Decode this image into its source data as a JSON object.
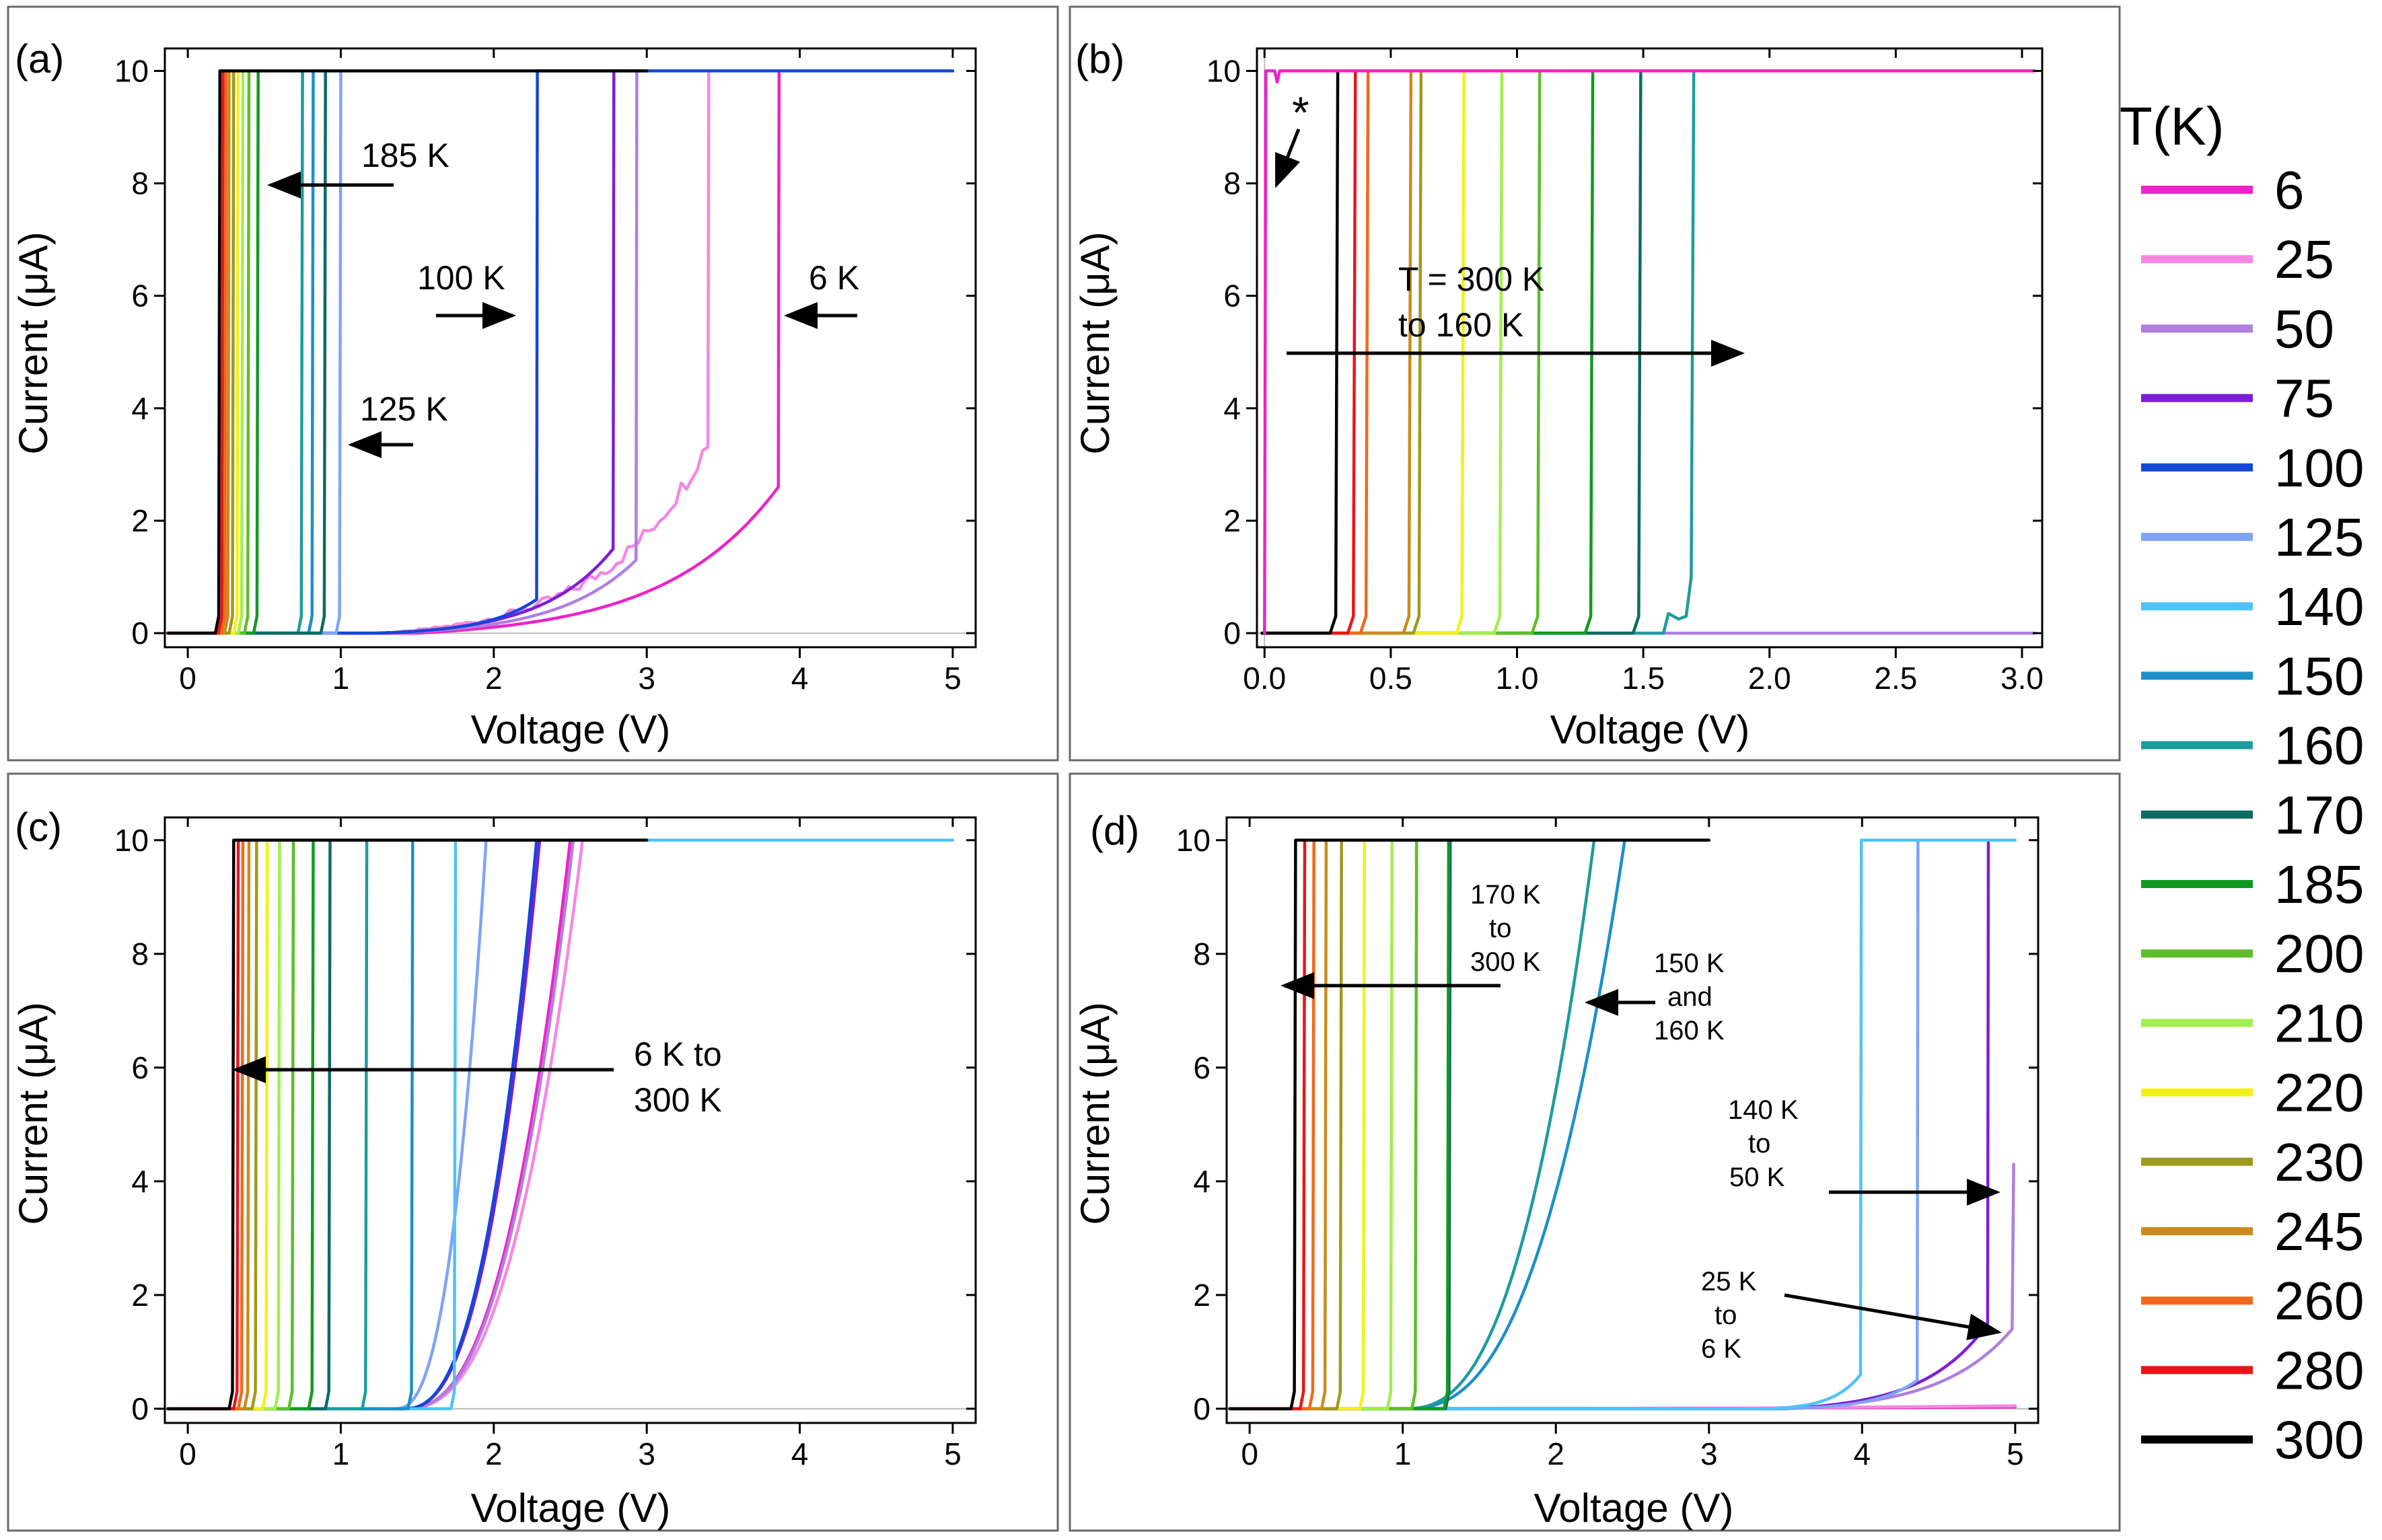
{
  "figure": {
    "legend": {
      "title": "T(K)",
      "entries": [
        {
          "label": "6",
          "color": "#EE22C8"
        },
        {
          "label": "25",
          "color": "#F587E3"
        },
        {
          "label": "50",
          "color": "#B07FE0"
        },
        {
          "label": "75",
          "color": "#7B1FD6"
        },
        {
          "label": "100",
          "color": "#1347D8"
        },
        {
          "label": "125",
          "color": "#7FA3F5"
        },
        {
          "label": "140",
          "color": "#4FC3F7"
        },
        {
          "label": "150",
          "color": "#1C8FC9"
        },
        {
          "label": "160",
          "color": "#1E9C9C"
        },
        {
          "label": "170",
          "color": "#0D6B63"
        },
        {
          "label": "185",
          "color": "#119A22"
        },
        {
          "label": "200",
          "color": "#5DBE2A"
        },
        {
          "label": "210",
          "color": "#A3EE4D"
        },
        {
          "label": "220",
          "color": "#F4F01A"
        },
        {
          "label": "230",
          "color": "#9E9A1E"
        },
        {
          "label": "245",
          "color": "#C98C1C"
        },
        {
          "label": "260",
          "color": "#F06A1C"
        },
        {
          "label": "280",
          "color": "#E8161B"
        },
        {
          "label": "300",
          "color": "#000000"
        }
      ]
    }
  },
  "chart_data": [
    {
      "panel": "(a)",
      "type": "line",
      "xlabel": "Voltage (V)",
      "ylabel": "Current (μA)",
      "xlim": [
        -0.15,
        5.15
      ],
      "ylim": [
        -0.25,
        10.4
      ],
      "xticks": [
        0,
        1,
        2,
        3,
        4,
        5
      ],
      "xtick_labels": [
        "0",
        "1",
        "2",
        "3",
        "4",
        "5"
      ],
      "yticks": [
        0,
        2,
        4,
        6,
        8,
        10
      ],
      "ytick_labels": [
        "0",
        "2",
        "4",
        "6",
        "8",
        "10"
      ],
      "series": [
        {
          "name": "6",
          "kind": "exp",
          "vstart": 1.5,
          "vjump": 3.86,
          "ijump": 2.6,
          "vend": 3.86
        },
        {
          "name": "25",
          "kind": "noisy",
          "vstart": 1.3,
          "vjump": 3.4,
          "ijump": 3.4,
          "vend": 3.4
        },
        {
          "name": "50",
          "kind": "exp",
          "vstart": 1.3,
          "vjump": 2.93,
          "ijump": 1.3,
          "vend": 2.93
        },
        {
          "name": "75",
          "kind": "exp",
          "vstart": 1.3,
          "vjump": 2.78,
          "ijump": 1.5,
          "vend": 2.78
        },
        {
          "name": "100",
          "kind": "exp",
          "vstart": 1.2,
          "vjump": 2.28,
          "ijump": 0.6,
          "vend": 5.0
        },
        {
          "name": "125",
          "kind": "step",
          "vjump": 1.0,
          "vend": 1.0
        },
        {
          "name": "150",
          "kind": "step",
          "vjump": 0.82,
          "vend": 0.82
        },
        {
          "name": "160",
          "kind": "step",
          "vjump": 0.75,
          "vend": 0.75
        },
        {
          "name": "170",
          "kind": "step",
          "vjump": 0.9,
          "vend": 0.9
        },
        {
          "name": "185",
          "kind": "step",
          "vjump": 0.46,
          "vend": 0.46
        },
        {
          "name": "200",
          "kind": "step",
          "vjump": 0.4,
          "vend": 0.4
        },
        {
          "name": "210",
          "kind": "step",
          "vjump": 0.36,
          "vend": 0.36
        },
        {
          "name": "220",
          "kind": "step",
          "vjump": 0.33,
          "vend": 0.33
        },
        {
          "name": "230",
          "kind": "step",
          "vjump": 0.3,
          "vend": 0.3
        },
        {
          "name": "245",
          "kind": "step",
          "vjump": 0.27,
          "vend": 0.27
        },
        {
          "name": "260",
          "kind": "step",
          "vjump": 0.25,
          "vend": 0.25
        },
        {
          "name": "280",
          "kind": "step",
          "vjump": 0.23,
          "vend": 0.23
        },
        {
          "name": "300",
          "kind": "step",
          "vjump": 0.21,
          "vend": 3.0
        }
      ]
    },
    {
      "panel": "(b)",
      "type": "line",
      "xlabel": "Voltage (V)",
      "ylabel": "Current (μA)",
      "xlim": [
        -0.03,
        3.08
      ],
      "ylim": [
        -0.25,
        10.4
      ],
      "xticks": [
        0,
        0.5,
        1.0,
        1.5,
        2.0,
        2.5,
        3.0
      ],
      "xtick_labels": [
        "0.0",
        "0.5",
        "1.0",
        "1.5",
        "2.0",
        "2.5",
        "3.0"
      ],
      "yticks": [
        0,
        2,
        4,
        6,
        8,
        10
      ],
      "ytick_labels": [
        "0",
        "2",
        "4",
        "6",
        "8",
        "10"
      ],
      "series": [
        {
          "name": "50",
          "kind": "flat",
          "vjump": 1.6,
          "vend": 3.05
        },
        {
          "name": "160",
          "kind": "bump",
          "vjump": 1.7,
          "vend": 1.7
        },
        {
          "name": "170",
          "kind": "step",
          "vjump": 1.49,
          "vend": 1.49
        },
        {
          "name": "185",
          "kind": "step",
          "vjump": 1.3,
          "vend": 1.3
        },
        {
          "name": "200",
          "kind": "step",
          "vjump": 1.09,
          "vend": 1.09
        },
        {
          "name": "210",
          "kind": "step",
          "vjump": 0.94,
          "vend": 0.94
        },
        {
          "name": "220",
          "kind": "step",
          "vjump": 0.79,
          "vend": 0.79
        },
        {
          "name": "230",
          "kind": "step",
          "vjump": 0.62,
          "vend": 0.62
        },
        {
          "name": "245",
          "kind": "step",
          "vjump": 0.58,
          "vend": 0.58
        },
        {
          "name": "260",
          "kind": "step",
          "vjump": 0.41,
          "vend": 0.41
        },
        {
          "name": "280",
          "kind": "step",
          "vjump": 0.36,
          "vend": 0.36
        },
        {
          "name": "300",
          "kind": "step",
          "vjump": 0.29,
          "vend": 0.29
        },
        {
          "name": "6",
          "kind": "instant",
          "vjump": 0.0,
          "vend": 3.05
        }
      ]
    },
    {
      "panel": "(c)",
      "type": "line",
      "xlabel": "Voltage (V)",
      "ylabel": "Current (μA)",
      "xlim": [
        -0.15,
        5.15
      ],
      "ylim": [
        -0.25,
        10.4
      ],
      "xticks": [
        0,
        1,
        2,
        3,
        4,
        5
      ],
      "xtick_labels": [
        "0",
        "1",
        "2",
        "3",
        "4",
        "5"
      ],
      "yticks": [
        0,
        2,
        4,
        6,
        8,
        10
      ],
      "ytick_labels": [
        "0",
        "2",
        "4",
        "6",
        "8",
        "10"
      ],
      "series": [
        {
          "name": "6",
          "kind": "power",
          "vstart": 1.4,
          "vjump": 2.5,
          "ijump": 10.0,
          "vend": 2.5
        },
        {
          "name": "25",
          "kind": "power",
          "vstart": 1.4,
          "vjump": 2.58,
          "ijump": 10.0,
          "vend": 2.58
        },
        {
          "name": "50",
          "kind": "power",
          "vstart": 1.4,
          "vjump": 2.52,
          "ijump": 10.0,
          "vend": 2.52
        },
        {
          "name": "75",
          "kind": "power",
          "vstart": 1.4,
          "vjump": 2.3,
          "ijump": 10.0,
          "vend": 2.3
        },
        {
          "name": "100",
          "kind": "power",
          "vstart": 1.4,
          "vjump": 2.28,
          "ijump": 10.0,
          "vend": 2.28
        },
        {
          "name": "125",
          "kind": "power",
          "vstart": 1.35,
          "vjump": 1.95,
          "ijump": 10.0,
          "vend": 1.95
        },
        {
          "name": "140",
          "kind": "step",
          "vjump": 1.75,
          "vend": 5.0
        },
        {
          "name": "150",
          "kind": "step",
          "vjump": 1.47,
          "vend": 1.47
        },
        {
          "name": "160",
          "kind": "step",
          "vjump": 1.17,
          "vend": 1.17
        },
        {
          "name": "170",
          "kind": "step",
          "vjump": 0.93,
          "vend": 0.93
        },
        {
          "name": "185",
          "kind": "step",
          "vjump": 0.82,
          "vend": 0.82
        },
        {
          "name": "200",
          "kind": "step",
          "vjump": 0.69,
          "vend": 0.69
        },
        {
          "name": "210",
          "kind": "step",
          "vjump": 0.6,
          "vend": 0.6
        },
        {
          "name": "220",
          "kind": "step",
          "vjump": 0.52,
          "vend": 0.52
        },
        {
          "name": "230",
          "kind": "step",
          "vjump": 0.45,
          "vend": 0.45
        },
        {
          "name": "245",
          "kind": "step",
          "vjump": 0.4,
          "vend": 0.4
        },
        {
          "name": "260",
          "kind": "step",
          "vjump": 0.36,
          "vend": 0.36
        },
        {
          "name": "280",
          "kind": "step",
          "vjump": 0.33,
          "vend": 0.33
        },
        {
          "name": "300",
          "kind": "step",
          "vjump": 0.3,
          "vend": 3.0
        }
      ]
    },
    {
      "panel": "(d)",
      "type": "line",
      "xlabel": "Voltage (V)",
      "ylabel": "Current (μA)",
      "xlim": [
        -0.15,
        5.15
      ],
      "ylim": [
        -0.25,
        10.4
      ],
      "xticks": [
        0,
        1,
        2,
        3,
        4,
        5
      ],
      "xtick_labels": [
        "0",
        "1",
        "2",
        "3",
        "4",
        "5"
      ],
      "yticks": [
        0,
        2,
        4,
        6,
        8,
        10
      ],
      "ytick_labels": [
        "0",
        "2",
        "4",
        "6",
        "8",
        "10"
      ],
      "series": [
        {
          "name": "6",
          "kind": "flat",
          "vjump": 0.0,
          "vend": 5.0
        },
        {
          "name": "25",
          "kind": "flat",
          "vjump": 0.0,
          "vend": 5.0
        },
        {
          "name": "50",
          "kind": "exp",
          "vstart": 3.5,
          "vjump": 4.98,
          "ijump": 1.4,
          "ipeak": 4.3,
          "vend": 4.98
        },
        {
          "name": "75",
          "kind": "exp",
          "vstart": 3.5,
          "vjump": 4.82,
          "ijump": 1.5,
          "vend": 4.82
        },
        {
          "name": "125",
          "kind": "exp",
          "vstart": 3.5,
          "vjump": 4.36,
          "ijump": 0.5,
          "vend": 5.0
        },
        {
          "name": "140",
          "kind": "exp",
          "vstart": 3.4,
          "vjump": 3.99,
          "ijump": 0.6,
          "vend": 5.0
        },
        {
          "name": "150",
          "kind": "power",
          "vstart": 1.0,
          "vjump": 2.45,
          "ijump": 10.0,
          "vend": 2.45
        },
        {
          "name": "160",
          "kind": "power",
          "vstart": 1.0,
          "vjump": 2.25,
          "ijump": 10.0,
          "vend": 2.25
        },
        {
          "name": "170",
          "kind": "step",
          "vjump": 1.31,
          "vend": 1.31
        },
        {
          "name": "185",
          "kind": "step",
          "vjump": 1.3,
          "vend": 1.3
        },
        {
          "name": "200",
          "kind": "step",
          "vjump": 1.09,
          "vend": 1.09
        },
        {
          "name": "210",
          "kind": "step",
          "vjump": 0.93,
          "vend": 0.93
        },
        {
          "name": "220",
          "kind": "step",
          "vjump": 0.75,
          "vend": 0.75
        },
        {
          "name": "230",
          "kind": "step",
          "vjump": 0.6,
          "vend": 0.6
        },
        {
          "name": "245",
          "kind": "step",
          "vjump": 0.5,
          "vend": 0.5
        },
        {
          "name": "260",
          "kind": "step",
          "vjump": 0.42,
          "vend": 0.42
        },
        {
          "name": "280",
          "kind": "step",
          "vjump": 0.36,
          "vend": 0.36
        },
        {
          "name": "300",
          "kind": "step",
          "vjump": 0.3,
          "vend": 3.0
        }
      ]
    }
  ],
  "annotations": {
    "a_185": "185 K",
    "a_100": "100 K",
    "a_125": "125 K",
    "a_6": "6 K",
    "b_star": "*",
    "b_line1": "T = 300 K",
    "b_line2": "to 160 K",
    "c_line1": "6 K to",
    "c_line2": "300 K",
    "d_170_1": "170 K",
    "d_170_2": "to",
    "d_170_3": "300 K",
    "d_150_1": "150 K",
    "d_150_2": "and",
    "d_150_3": "160 K",
    "d_140_1": "140 K",
    "d_140_2": "to",
    "d_140_3": "50 K",
    "d_25_1": "25 K",
    "d_25_2": "to",
    "d_25_3": "6 K"
  }
}
